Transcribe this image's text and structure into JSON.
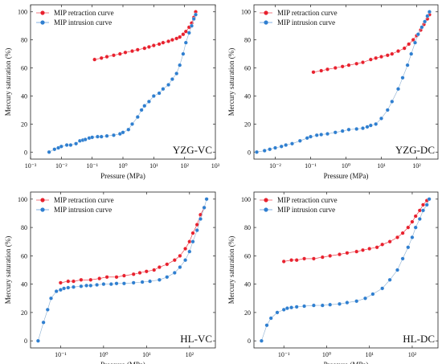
{
  "colors": {
    "retraction": "#e8212e",
    "intrusion": "#2f7fd0",
    "intrusion_line": "#8aaed0"
  },
  "legend": {
    "retraction": "MIP retraction curve",
    "intrusion": "MIP intrusion curve"
  },
  "chart_data": [
    {
      "type": "scatter",
      "panel_label": "YZG-VC",
      "xlabel": "Pressure (MPa)",
      "ylabel": "Mercury saturation (%)",
      "xscale": "log",
      "xlim": [
        0.001,
        1000
      ],
      "xticks": [
        "10⁻³",
        "10⁻²",
        "10⁻¹",
        "10⁰",
        "10¹",
        "10²",
        "10³"
      ],
      "xtick_values": [
        0.001,
        0.01,
        0.1,
        1,
        10,
        100,
        1000
      ],
      "ylim": [
        -5,
        105
      ],
      "yticks": [
        0,
        20,
        40,
        60,
        80,
        100
      ],
      "legend_position": "top-left",
      "series": [
        {
          "name": "MIP retraction curve",
          "kind": "retraction",
          "x": [
            0.12,
            0.2,
            0.3,
            0.5,
            0.8,
            1.2,
            2,
            3,
            5,
            7,
            10,
            15,
            20,
            30,
            40,
            55,
            70,
            90,
            110,
            140,
            170,
            200,
            230
          ],
          "y": [
            66,
            67,
            68,
            69,
            70,
            71,
            72,
            73,
            74,
            75,
            76,
            77,
            78,
            79,
            80,
            81,
            82,
            84,
            86,
            89,
            92,
            96,
            100
          ]
        },
        {
          "name": "MIP intrusion curve",
          "kind": "intrusion",
          "x": [
            0.004,
            0.006,
            0.008,
            0.01,
            0.015,
            0.02,
            0.03,
            0.04,
            0.05,
            0.06,
            0.08,
            0.1,
            0.15,
            0.2,
            0.3,
            0.5,
            0.8,
            1.0,
            1.5,
            2,
            3,
            4,
            5,
            7,
            10,
            15,
            20,
            30,
            40,
            55,
            70,
            90,
            110,
            140,
            170,
            200,
            230
          ],
          "y": [
            0,
            2,
            3,
            4,
            5,
            5,
            6,
            8,
            8.5,
            9,
            10,
            10.5,
            11,
            11,
            11.5,
            12,
            13,
            14,
            16,
            20,
            25,
            30,
            33,
            36,
            40,
            42,
            45,
            48,
            52,
            56,
            62,
            70,
            78,
            85,
            90,
            95,
            98
          ]
        }
      ]
    },
    {
      "type": "scatter",
      "panel_label": "YZG-DC",
      "xlabel": "Pressure (MPa)",
      "ylabel": "Mercury saturation (%)",
      "xscale": "log",
      "xlim": [
        0.0025,
        400
      ],
      "xticks": [
        "10⁻²",
        "10⁻¹",
        "10⁰",
        "10¹",
        "10²"
      ],
      "xtick_values": [
        0.01,
        0.1,
        1,
        10,
        100
      ],
      "ylim": [
        -5,
        105
      ],
      "yticks": [
        0,
        20,
        40,
        60,
        80,
        100
      ],
      "legend_position": "top-left",
      "series": [
        {
          "name": "MIP retraction curve",
          "kind": "retraction",
          "x": [
            0.12,
            0.2,
            0.3,
            0.5,
            0.8,
            1.2,
            2,
            3,
            5,
            7,
            10,
            15,
            20,
            30,
            45,
            60,
            80,
            100,
            130,
            160,
            200,
            230
          ],
          "y": [
            57,
            58,
            59,
            60,
            61,
            62,
            63,
            64,
            66,
            67,
            68,
            69,
            70,
            72,
            74,
            77,
            80,
            83,
            87,
            91,
            95,
            98
          ]
        },
        {
          "name": "MIP intrusion curve",
          "kind": "intrusion",
          "x": [
            0.003,
            0.005,
            0.007,
            0.01,
            0.015,
            0.02,
            0.03,
            0.05,
            0.08,
            0.1,
            0.15,
            0.2,
            0.3,
            0.5,
            0.8,
            1.2,
            2,
            3,
            4,
            5,
            7,
            10,
            15,
            20,
            30,
            40,
            55,
            70,
            90,
            110,
            140,
            170,
            200,
            230
          ],
          "y": [
            0,
            1,
            2,
            3,
            4,
            5,
            6,
            8,
            10,
            11,
            12,
            12.5,
            13,
            14,
            15,
            16,
            16.5,
            17,
            18,
            19,
            20,
            24,
            30,
            36,
            45,
            53,
            62,
            70,
            78,
            84,
            89,
            93,
            97,
            100
          ]
        }
      ]
    },
    {
      "type": "scatter",
      "panel_label": "HL-VC",
      "xlabel": "Pressure (MPa)",
      "ylabel": "Mercury saturation (%)",
      "xscale": "log",
      "xlim": [
        0.02,
        400
      ],
      "xticks": [
        "10⁻¹",
        "10⁰",
        "10¹",
        "10²"
      ],
      "xtick_values": [
        0.1,
        1,
        10,
        100
      ],
      "ylim": [
        -5,
        105
      ],
      "yticks": [
        0,
        20,
        40,
        60,
        80,
        100
      ],
      "legend_position": "top-left",
      "series": [
        {
          "name": "MIP retraction curve",
          "kind": "retraction",
          "x": [
            0.1,
            0.15,
            0.2,
            0.3,
            0.5,
            0.8,
            1.2,
            2,
            3,
            5,
            7,
            10,
            15,
            20,
            30,
            45,
            60,
            80,
            100,
            120,
            150,
            180,
            220
          ],
          "y": [
            41,
            42,
            42,
            43,
            43,
            44,
            45,
            45,
            46,
            47,
            48,
            49,
            50,
            52,
            54,
            57,
            60,
            65,
            70,
            76,
            82,
            89,
            94
          ]
        },
        {
          "name": "MIP intrusion curve",
          "kind": "intrusion",
          "x": [
            0.03,
            0.04,
            0.05,
            0.06,
            0.08,
            0.1,
            0.12,
            0.15,
            0.2,
            0.3,
            0.4,
            0.5,
            0.7,
            1.0,
            1.5,
            2,
            3,
            5,
            8,
            12,
            20,
            30,
            45,
            60,
            80,
            100,
            120,
            150,
            180,
            220,
            250
          ],
          "y": [
            0,
            13,
            22,
            30,
            35,
            36,
            37,
            37.5,
            38,
            38.5,
            39,
            39,
            39.5,
            40,
            40,
            40.5,
            40.5,
            41,
            41.5,
            42,
            43,
            45,
            48,
            52,
            57,
            63,
            70,
            78,
            86,
            94,
            100
          ]
        }
      ]
    },
    {
      "type": "scatter",
      "panel_label": "HL-DC",
      "xlabel": "Pressure (MPa)",
      "ylabel": "Mercury saturation (%)",
      "xscale": "log",
      "xlim": [
        0.02,
        400
      ],
      "xticks": [
        "10⁻¹",
        "10⁰",
        "10¹",
        "10²"
      ],
      "xtick_values": [
        0.1,
        1,
        10,
        100
      ],
      "ylim": [
        -5,
        105
      ],
      "yticks": [
        0,
        20,
        40,
        60,
        80,
        100
      ],
      "legend_position": "top-left",
      "series": [
        {
          "name": "MIP retraction curve",
          "kind": "retraction",
          "x": [
            0.1,
            0.15,
            0.2,
            0.3,
            0.5,
            0.8,
            1.2,
            2,
            3,
            5,
            7,
            10,
            15,
            20,
            30,
            45,
            60,
            80,
            100,
            120,
            150,
            180,
            220
          ],
          "y": [
            56,
            57,
            57,
            58,
            58,
            59,
            60,
            61,
            62,
            63,
            64,
            65,
            66,
            68,
            70,
            73,
            76,
            80,
            84,
            88,
            92,
            96,
            99
          ]
        },
        {
          "name": "MIP intrusion curve",
          "kind": "intrusion",
          "x": [
            0.03,
            0.04,
            0.05,
            0.07,
            0.1,
            0.12,
            0.15,
            0.2,
            0.3,
            0.5,
            0.8,
            1.2,
            2,
            3,
            5,
            8,
            12,
            20,
            30,
            45,
            60,
            80,
            100,
            120,
            150,
            180,
            220,
            250
          ],
          "y": [
            0,
            11,
            16,
            20,
            22,
            23,
            23.5,
            24,
            24.5,
            25,
            25,
            25.5,
            26,
            27,
            28,
            30,
            33,
            37,
            43,
            50,
            58,
            66,
            73,
            80,
            86,
            92,
            96,
            100
          ]
        }
      ]
    }
  ]
}
